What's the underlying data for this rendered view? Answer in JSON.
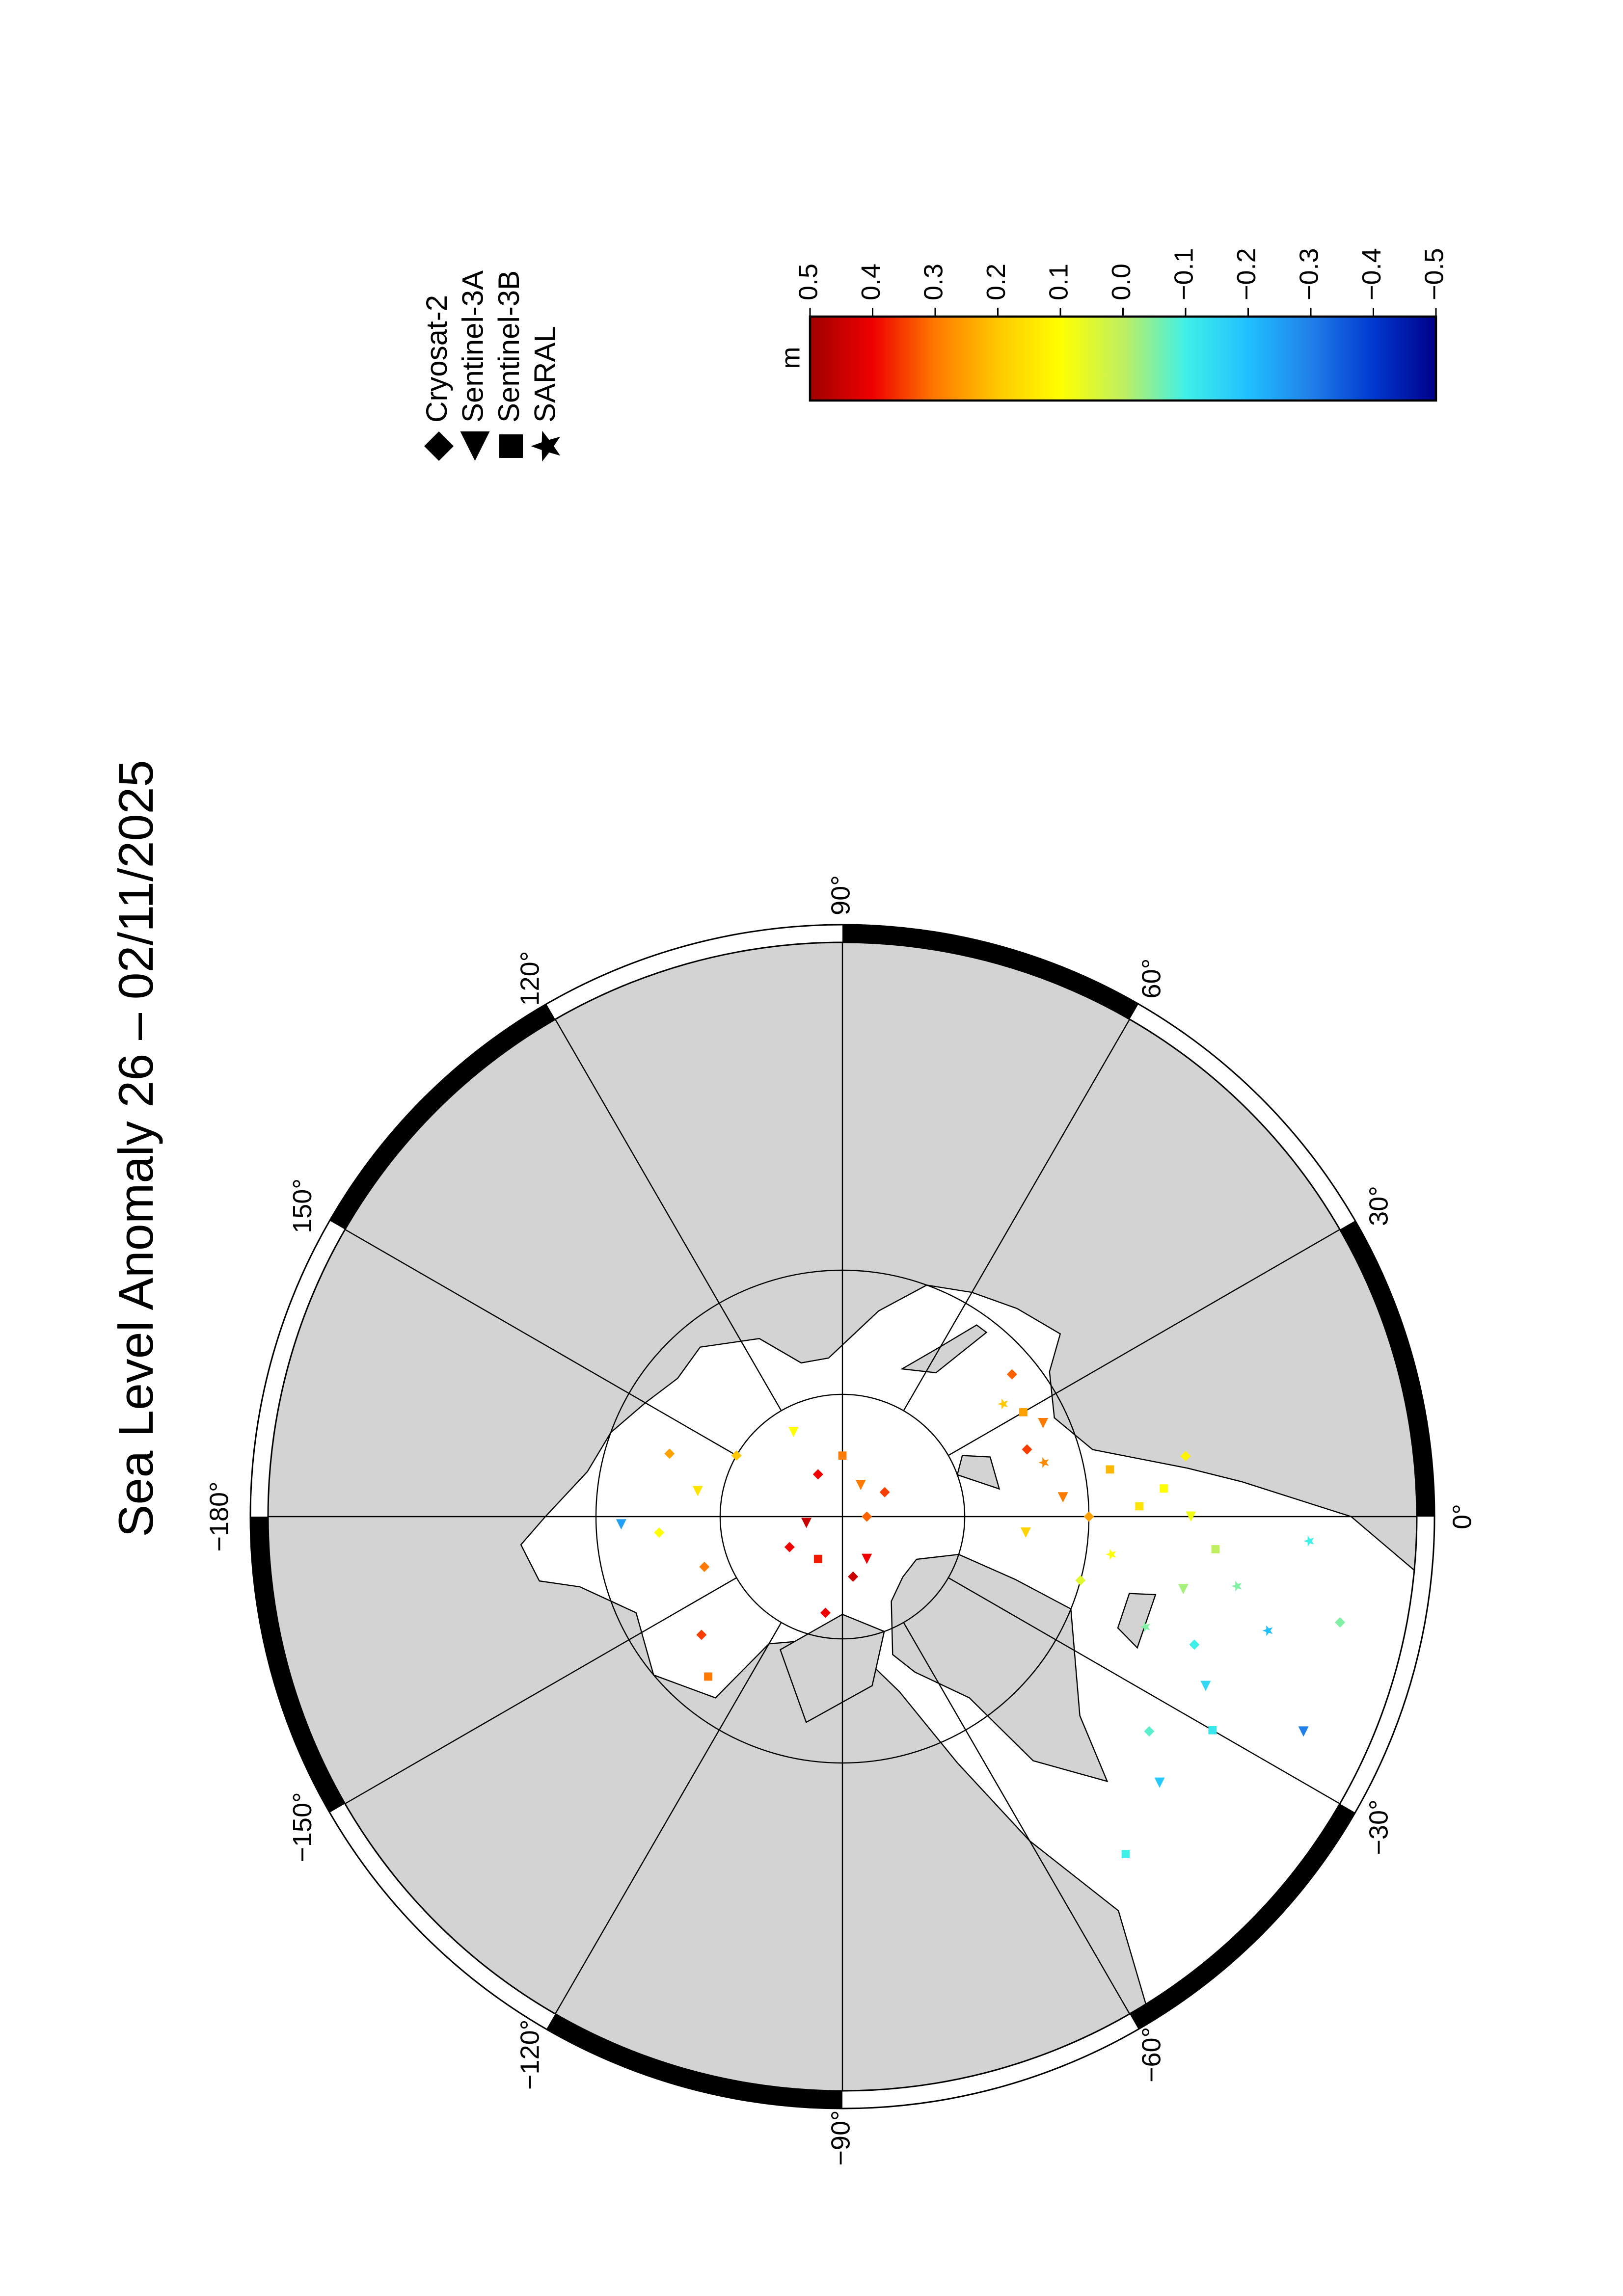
{
  "title": "Sea Level Anomaly 26 – 02/11/2025",
  "map": {
    "projection": "north-polar-stereographic",
    "lon_labels": [
      {
        "value": 0,
        "label": "0°"
      },
      {
        "value": 30,
        "label": "30°"
      },
      {
        "value": 60,
        "label": "60°"
      },
      {
        "value": 90,
        "label": "90°"
      },
      {
        "value": 120,
        "label": "120°"
      },
      {
        "value": 150,
        "label": "150°"
      },
      {
        "value": 180,
        "label": "−180°"
      },
      {
        "value": -150,
        "label": "−150°"
      },
      {
        "value": -120,
        "label": "−120°"
      },
      {
        "value": -90,
        "label": "−90°"
      },
      {
        "value": -60,
        "label": "−60°"
      },
      {
        "value": -30,
        "label": "−30°"
      }
    ],
    "points": [
      {
        "lon": 0,
        "lat": 70,
        "sla": 0.25,
        "satellite": 0
      },
      {
        "lon": 5,
        "lat": 72,
        "sla": 0.3,
        "satellite": 1
      },
      {
        "lon": 10,
        "lat": 68,
        "sla": 0.22,
        "satellite": 2
      },
      {
        "lon": 15,
        "lat": 73,
        "sla": 0.28,
        "satellite": 3
      },
      {
        "lon": 20,
        "lat": 74,
        "sla": 0.35,
        "satellite": 0
      },
      {
        "lon": 25,
        "lat": 72,
        "sla": 0.3,
        "satellite": 1
      },
      {
        "lon": 30,
        "lat": 73,
        "sla": 0.25,
        "satellite": 2
      },
      {
        "lon": 35,
        "lat": 74,
        "sla": 0.2,
        "satellite": 3
      },
      {
        "lon": 40,
        "lat": 72,
        "sla": 0.32,
        "satellite": 0
      },
      {
        "lon": -5,
        "lat": 75,
        "sla": 0.18,
        "satellite": 1
      },
      {
        "lon": 2,
        "lat": 66,
        "sla": 0.15,
        "satellite": 2
      },
      {
        "lon": -8,
        "lat": 68,
        "sla": 0.1,
        "satellite": 3
      },
      {
        "lon": -15,
        "lat": 70,
        "sla": 0.05,
        "satellite": 0
      },
      {
        "lon": 0,
        "lat": 62,
        "sla": 0.08,
        "satellite": 1
      },
      {
        "lon": -5,
        "lat": 60,
        "sla": 0.0,
        "satellite": 2
      },
      {
        "lon": -10,
        "lat": 58,
        "sla": -0.05,
        "satellite": 3
      },
      {
        "lon": -20,
        "lat": 60,
        "sla": -0.1,
        "satellite": 0
      },
      {
        "lon": -25,
        "lat": 58,
        "sla": -0.15,
        "satellite": 1
      },
      {
        "lon": -30,
        "lat": 56,
        "sla": -0.12,
        "satellite": 2
      },
      {
        "lon": -15,
        "lat": 55,
        "sla": -0.2,
        "satellite": 3
      },
      {
        "lon": -35,
        "lat": 60,
        "sla": -0.08,
        "satellite": 0
      },
      {
        "lon": -40,
        "lat": 57,
        "sla": -0.18,
        "satellite": 1
      },
      {
        "lon": -50,
        "lat": 55,
        "sla": -0.1,
        "satellite": 2
      },
      {
        "lon": -20,
        "lat": 64,
        "sla": -0.05,
        "satellite": 3
      },
      {
        "lon": 10,
        "lat": 62,
        "sla": 0.12,
        "satellite": 0
      },
      {
        "lon": -12,
        "lat": 62,
        "sla": -0.02,
        "satellite": 1
      },
      {
        "lon": 5,
        "lat": 64,
        "sla": 0.1,
        "satellite": 2
      },
      {
        "lon": -3,
        "lat": 53,
        "sla": -0.1,
        "satellite": 3
      },
      {
        "lon": -12,
        "lat": 50,
        "sla": -0.05,
        "satellite": 0
      },
      {
        "lon": -25,
        "lat": 50,
        "sla": -0.3,
        "satellite": 1
      },
      {
        "lon": 30,
        "lat": 86,
        "sla": 0.35,
        "satellite": 0
      },
      {
        "lon": 60,
        "lat": 87,
        "sla": 0.3,
        "satellite": 1
      },
      {
        "lon": 90,
        "lat": 85,
        "sla": 0.3,
        "satellite": 2
      },
      {
        "lon": 120,
        "lat": 86,
        "sla": 0.4,
        "satellite": 0
      },
      {
        "lon": -170,
        "lat": 87,
        "sla": 0.45,
        "satellite": 1
      },
      {
        "lon": -150,
        "lat": 85,
        "sla": 0.4,
        "satellite": 0
      },
      {
        "lon": -120,
        "lat": 86,
        "sla": 0.38,
        "satellite": 2
      },
      {
        "lon": -80,
        "lat": 85,
        "sla": 0.45,
        "satellite": 0
      },
      {
        "lon": -60,
        "lat": 86,
        "sla": 0.4,
        "satellite": 1
      },
      {
        "lon": 0,
        "lat": 88,
        "sla": 0.32,
        "satellite": 0
      },
      {
        "lon": 150,
        "lat": 80,
        "sla": 0.2,
        "satellite": 0
      },
      {
        "lon": 170,
        "lat": 78,
        "sla": 0.15,
        "satellite": 1
      },
      {
        "lon": -160,
        "lat": 78,
        "sla": 0.3,
        "satellite": 0
      },
      {
        "lon": -140,
        "lat": 75,
        "sla": 0.35,
        "satellite": 0
      },
      {
        "lon": -130,
        "lat": 73,
        "sla": 0.3,
        "satellite": 2
      },
      {
        "lon": 160,
        "lat": 75,
        "sla": 0.25,
        "satellite": 0
      },
      {
        "lon": 120,
        "lat": 82,
        "sla": 0.1,
        "satellite": 1
      },
      {
        "lon": -100,
        "lat": 82,
        "sla": 0.4,
        "satellite": 0
      },
      {
        "lon": -175,
        "lat": 75,
        "sla": 0.1,
        "satellite": 0
      },
      {
        "lon": -178,
        "lat": 72,
        "sla": -0.25,
        "satellite": 1
      }
    ]
  },
  "legend": [
    {
      "name": "Cryosat-2",
      "marker": "diamond"
    },
    {
      "name": "Sentinel-3A",
      "marker": "triangle"
    },
    {
      "name": "Sentinel-3B",
      "marker": "square"
    },
    {
      "name": "SARAL",
      "marker": "star"
    }
  ],
  "colorbar": {
    "unit": "m",
    "ticks": [
      0.5,
      0.4,
      0.3,
      0.2,
      0.1,
      {
        "value": 0,
        "label": "0.0"
      },
      {
        "value": -0.1,
        "label": "−0.1"
      },
      {
        "value": -0.2,
        "label": "−0.2"
      },
      {
        "value": -0.3,
        "label": "−0.3"
      },
      {
        "value": -0.4,
        "label": "−0.4"
      },
      {
        "value": -0.5,
        "label": "−0.5"
      }
    ],
    "colors": [
      "#a00000",
      "#f00000",
      "#ff7a00",
      "#ffc800",
      "#ffff00",
      "#c0f060",
      "#40f0e8",
      "#20c0ff",
      "#2080e8",
      "#0038d0",
      "#000088"
    ]
  }
}
